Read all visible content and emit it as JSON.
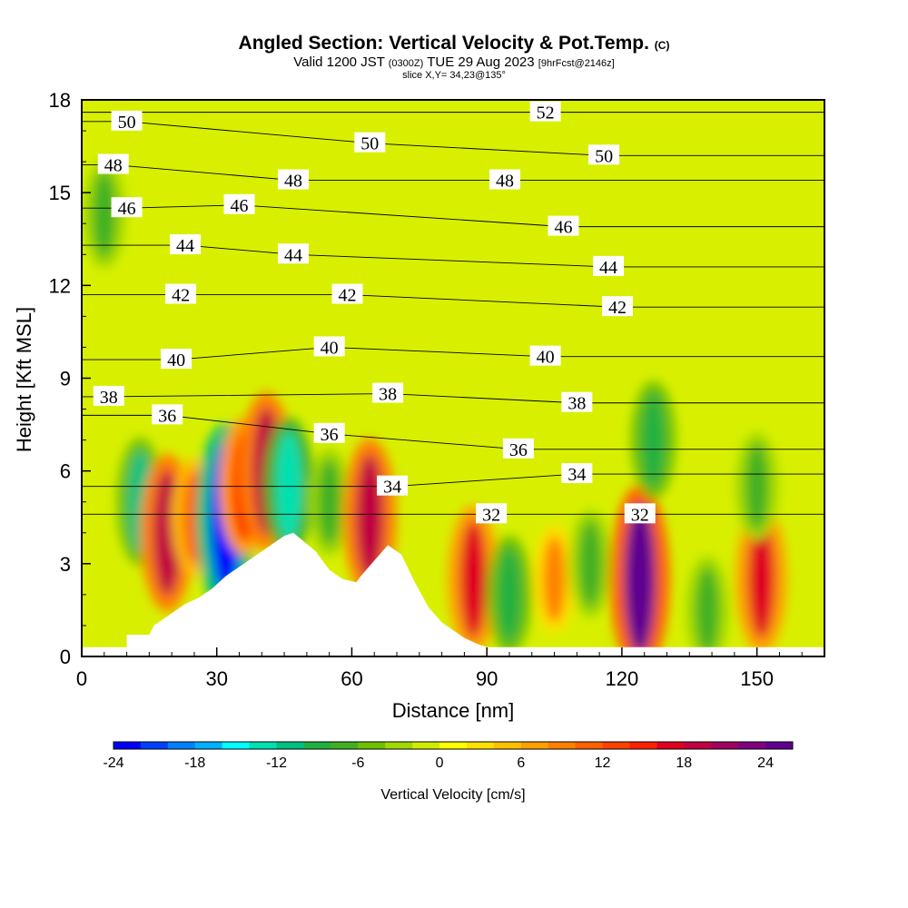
{
  "title": {
    "main": "Angled Section: Vertical Velocity & Pot.Temp.",
    "main_suffix": "(C)",
    "valid_prefix": "Valid 1200 JST",
    "valid_utc": "(0300Z)",
    "valid_date": "TUE 29 Aug 2023",
    "forecast": "[9hrFcst@2146z]",
    "slice": "slice X,Y= 34,23@135°"
  },
  "chart_data": {
    "type": "heatmap",
    "xlabel": "Distance [nm]",
    "ylabel": "Height [Kft MSL]",
    "xlim": [
      0,
      165
    ],
    "ylim": [
      0,
      18
    ],
    "x_ticks": [
      0,
      30,
      60,
      90,
      120,
      150
    ],
    "y_ticks": [
      0,
      3,
      6,
      9,
      12,
      15,
      18
    ],
    "colorbar": {
      "title": "Vertical Velocity [cm/s]",
      "range": [
        -24,
        26
      ],
      "step": 2,
      "ticks": [
        -24,
        -18,
        -12,
        -6,
        0,
        6,
        12,
        18,
        24
      ],
      "colors": [
        "#0000ff",
        "#0040ff",
        "#0080ff",
        "#00b0ff",
        "#00ffff",
        "#00e0b0",
        "#00c080",
        "#20b040",
        "#40b020",
        "#70c000",
        "#a0d800",
        "#d0ec00",
        "#ffff00",
        "#ffe000",
        "#ffc000",
        "#ffa000",
        "#ff8000",
        "#ff6000",
        "#ff4000",
        "#ff2000",
        "#e00020",
        "#c00040",
        "#a00060",
        "#800080",
        "#600090"
      ]
    },
    "terrain_profile": {
      "x": [
        0,
        10,
        10,
        15,
        16,
        20,
        23,
        26,
        29,
        32,
        33,
        36,
        39,
        42,
        45,
        47,
        52,
        55,
        58,
        61,
        62,
        65,
        68,
        71,
        74,
        77,
        80,
        83,
        85,
        88,
        90,
        165
      ],
      "height": [
        0.3,
        0.3,
        0.7,
        0.7,
        1.0,
        1.4,
        1.7,
        1.9,
        2.2,
        2.6,
        2.7,
        3.0,
        3.3,
        3.6,
        3.9,
        4.0,
        3.4,
        2.8,
        2.5,
        2.4,
        2.6,
        3.1,
        3.6,
        3.3,
        2.4,
        1.6,
        1.1,
        0.8,
        0.6,
        0.4,
        0.3,
        0.3
      ]
    },
    "vertical_velocity_cells": [
      {
        "x": 5,
        "height": 14.3,
        "value": -8
      },
      {
        "x": 13,
        "height": 5.0,
        "value": -12
      },
      {
        "x": 19,
        "height": 4.0,
        "value": 18
      },
      {
        "x": 25,
        "height": 4.5,
        "value": 10
      },
      {
        "x": 32,
        "height": 4.5,
        "value": -24
      },
      {
        "x": 36,
        "height": 5.5,
        "value": 14
      },
      {
        "x": 41,
        "height": 6.0,
        "value": 18
      },
      {
        "x": 46,
        "height": 5.5,
        "value": -14
      },
      {
        "x": 55,
        "height": 5.0,
        "value": -8
      },
      {
        "x": 64,
        "height": 4.5,
        "value": 18
      },
      {
        "x": 87,
        "height": 2.5,
        "value": 16
      },
      {
        "x": 95,
        "height": 2.0,
        "value": -10
      },
      {
        "x": 105,
        "height": 2.5,
        "value": 8
      },
      {
        "x": 113,
        "height": 3.0,
        "value": -8
      },
      {
        "x": 124,
        "height": 2.5,
        "value": 24
      },
      {
        "x": 127,
        "height": 7.0,
        "value": -10
      },
      {
        "x": 139,
        "height": 1.5,
        "value": -8
      },
      {
        "x": 151,
        "height": 2.5,
        "value": 16
      },
      {
        "x": 150,
        "height": 5.5,
        "value": -8
      }
    ],
    "theta_contour_labels": [
      {
        "value": 50,
        "text": "50",
        "x": 10,
        "height": 17.3
      },
      {
        "value": 48,
        "text": "48",
        "x": 7,
        "height": 15.9
      },
      {
        "value": 46,
        "text": "46",
        "x": 10,
        "height": 14.5
      },
      {
        "value": 44,
        "text": "44",
        "x": 23,
        "height": 13.3
      },
      {
        "value": 42,
        "text": "42",
        "x": 22,
        "height": 11.7
      },
      {
        "value": 40,
        "text": "40",
        "x": 21,
        "height": 9.6
      },
      {
        "value": 38,
        "text": "38",
        "x": 6,
        "height": 8.4
      },
      {
        "value": 36,
        "text": "36",
        "x": 19,
        "height": 7.8
      },
      {
        "value": 46,
        "text": "46",
        "x": 35,
        "height": 14.6
      },
      {
        "value": 48,
        "text": "48",
        "x": 47,
        "height": 15.4
      },
      {
        "value": 44,
        "text": "44",
        "x": 47,
        "height": 13.0
      },
      {
        "value": 50,
        "text": "50",
        "x": 64,
        "height": 16.6
      },
      {
        "value": 42,
        "text": "42",
        "x": 59,
        "height": 11.7
      },
      {
        "value": 40,
        "text": "40",
        "x": 55,
        "height": 10.0
      },
      {
        "value": 36,
        "text": "36",
        "x": 55,
        "height": 7.2
      },
      {
        "value": 38,
        "text": "38",
        "x": 68,
        "height": 8.5
      },
      {
        "value": 34,
        "text": "34",
        "x": 69,
        "height": 5.5
      },
      {
        "value": 52,
        "text": "52",
        "x": 103,
        "height": 17.6
      },
      {
        "value": 48,
        "text": "48",
        "x": 94,
        "height": 15.4
      },
      {
        "value": 50,
        "text": "50",
        "x": 116,
        "height": 16.2
      },
      {
        "value": 46,
        "text": "46",
        "x": 107,
        "height": 13.9
      },
      {
        "value": 44,
        "text": "44",
        "x": 117,
        "height": 12.6
      },
      {
        "value": 42,
        "text": "42",
        "x": 119,
        "height": 11.3
      },
      {
        "value": 40,
        "text": "40",
        "x": 103,
        "height": 9.7
      },
      {
        "value": 38,
        "text": "38",
        "x": 110,
        "height": 8.2
      },
      {
        "value": 36,
        "text": "36",
        "x": 97,
        "height": 6.7
      },
      {
        "value": 34,
        "text": "34",
        "x": 110,
        "height": 5.9
      },
      {
        "value": 32,
        "text": "32",
        "x": 91,
        "height": 4.6
      },
      {
        "value": 32,
        "text": "32",
        "x": 124,
        "height": 4.6
      }
    ]
  }
}
